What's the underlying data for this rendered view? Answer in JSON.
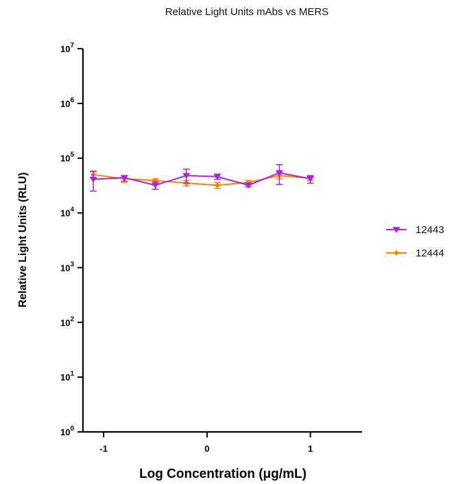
{
  "chart_data": {
    "type": "line",
    "title": "Relative Light Units mAbs vs MERS",
    "xlabel": "Log Concentration (μg/mL)",
    "ylabel": "Relative Light Units (RLU)",
    "xlim": [
      -1.2,
      1.5
    ],
    "xticks": [
      -1,
      0,
      1
    ],
    "yscale": "log",
    "ylim": [
      1,
      10000000
    ],
    "yticks": [
      {
        "base": "10",
        "exp": "0",
        "value": 1
      },
      {
        "base": "10",
        "exp": "1",
        "value": 10
      },
      {
        "base": "10",
        "exp": "2",
        "value": 100
      },
      {
        "base": "10",
        "exp": "3",
        "value": 1000
      },
      {
        "base": "10",
        "exp": "4",
        "value": 10000
      },
      {
        "base": "10",
        "exp": "5",
        "value": 100000
      },
      {
        "base": "10",
        "exp": "6",
        "value": 1000000
      },
      {
        "base": "10",
        "exp": "7",
        "value": 10000000
      }
    ],
    "legend_position": "right",
    "grid": false,
    "series": [
      {
        "name": "12443",
        "color": "#aa22dd",
        "marker": "triangle-down",
        "x": [
          -1.1,
          -0.8,
          -0.5,
          -0.2,
          0.1,
          0.4,
          0.7,
          1.0
        ],
        "y": [
          41000,
          44000,
          32000,
          48000,
          46000,
          32000,
          54000,
          42000
        ],
        "err_low": [
          25000,
          38000,
          27000,
          35000,
          41000,
          30000,
          33000,
          35000
        ],
        "err_high": [
          58000,
          48000,
          37000,
          63000,
          51000,
          35000,
          76000,
          48000
        ]
      },
      {
        "name": "12444",
        "color": "#ff8000",
        "marker": "diamond",
        "x": [
          -1.1,
          -0.8,
          -0.5,
          -0.2,
          0.1,
          0.4,
          0.7,
          1.0
        ],
        "y": [
          50000,
          42000,
          39000,
          35000,
          32000,
          36000,
          48000,
          43000
        ],
        "err_low": [
          43000,
          36000,
          35000,
          31000,
          28000,
          33000,
          42000,
          39000
        ],
        "err_high": [
          57000,
          47000,
          42000,
          39000,
          36000,
          39000,
          55000,
          47000
        ]
      }
    ]
  }
}
